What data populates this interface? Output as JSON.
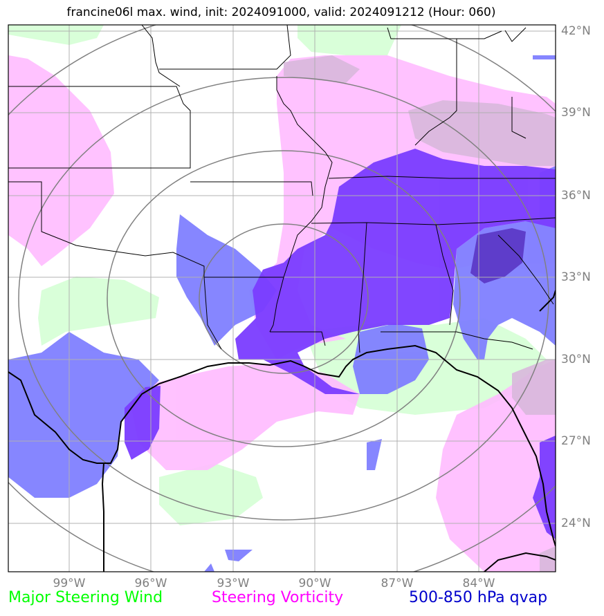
{
  "title": "francine06l max. wind, init: 2024091000, valid: 2024091212 (Hour: 060)",
  "lat_labels": [
    "42°N",
    "39°N",
    "36°N",
    "33°N",
    "30°N",
    "27°N",
    "24°N"
  ],
  "lon_labels": [
    "99°W",
    "96°W",
    "93°W",
    "90°W",
    "87°W",
    "84°W"
  ],
  "legend": {
    "wind": "Major Steering Wind",
    "vorticity": "Steering Vorticity",
    "qvap": "500-850 hPa qvap"
  },
  "colors": {
    "wind": "#ccffcc",
    "vorticity": "#ffbbff",
    "qvap_light": "#7f7fff",
    "qvap_dark": "#7a3cff",
    "grid": "#b0b0b0",
    "rings": "#808080"
  }
}
